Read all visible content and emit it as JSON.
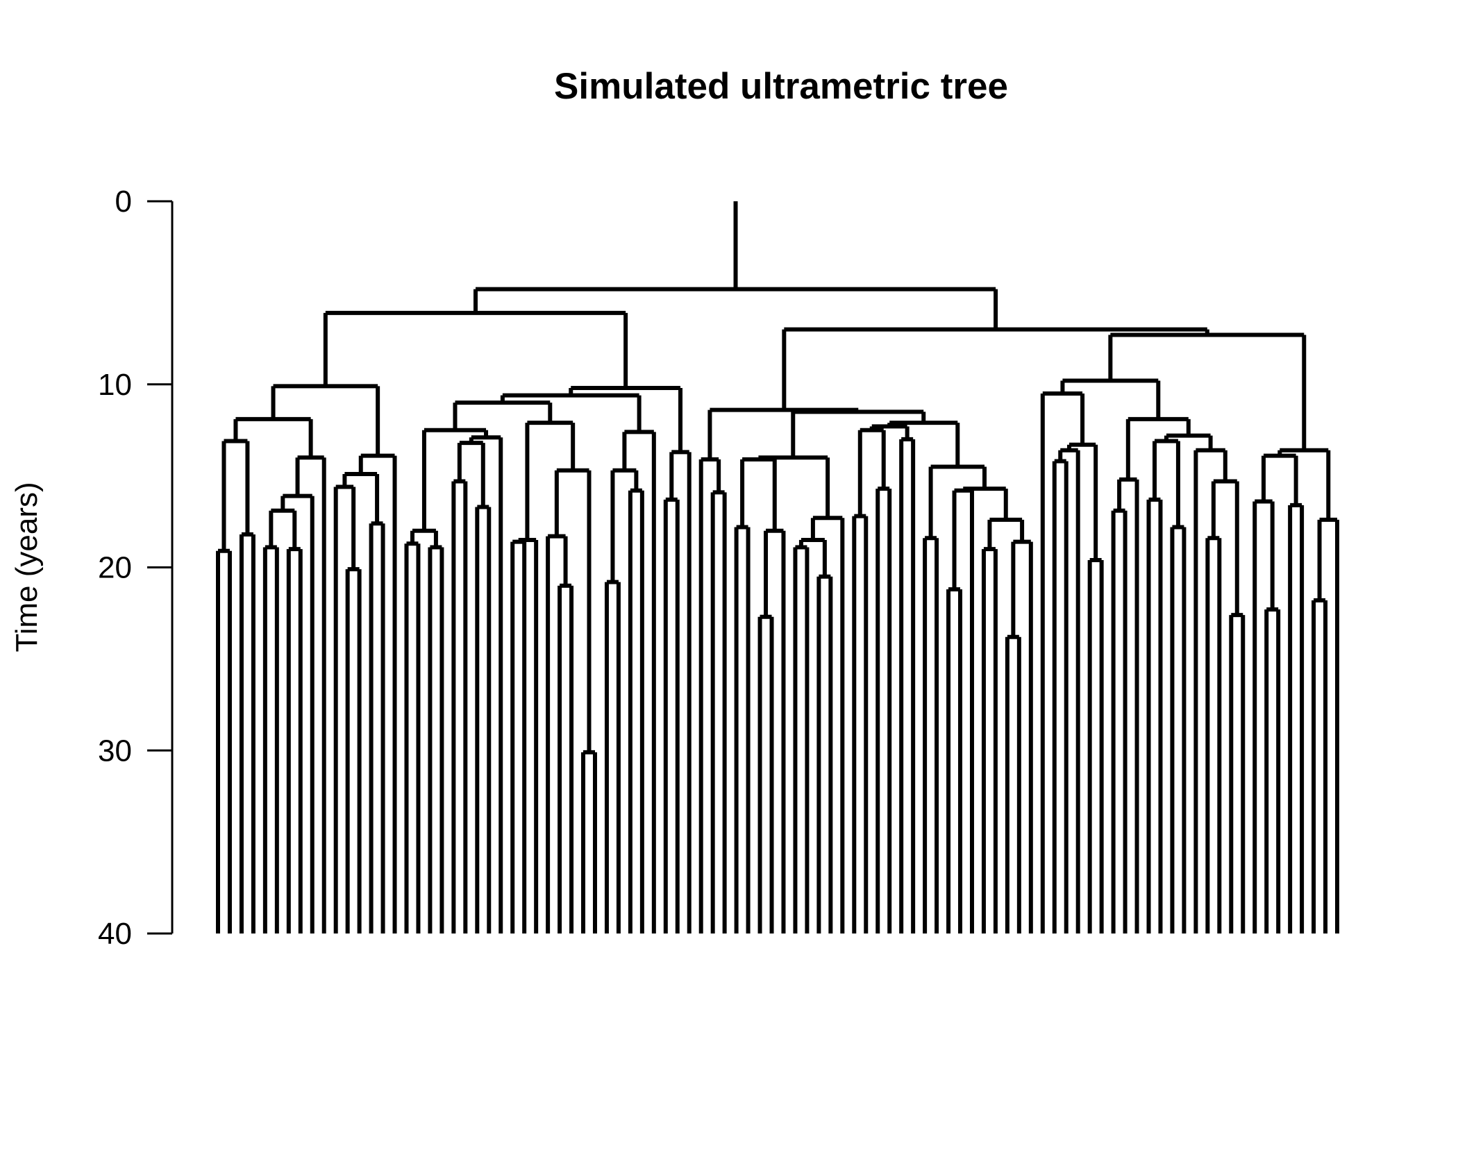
{
  "chart_data": {
    "type": "dendrogram",
    "title": "Simulated ultrametric tree",
    "ylabel": "Time (years)",
    "y_axis": {
      "ticks": [
        0,
        10,
        20,
        30,
        40
      ],
      "tick_labels": [
        "0",
        "10",
        "20",
        "30",
        "40"
      ],
      "ylim": [
        0,
        40
      ]
    },
    "tip_time": 40,
    "root_time": 0,
    "tree": [
      4.8,
      [
        6.1,
        [
          10.1,
          [
            11.9,
            [
              13.1,
              19.1,
              18.2
            ],
            [
              14.0,
              [
                16.1,
                [
                  16.9,
                  18.9,
                  19.0
                ],
                40
              ],
              40
            ]
          ],
          [
            13.9,
            [
              14.9,
              [
                15.6,
                40,
                20.1
              ],
              17.6
            ],
            40
          ]
        ],
        [
          10.2,
          [
            10.6,
            [
              11.0,
              [
                12.5,
                [
                  18.0,
                  18.7,
                  18.9
                ],
                [
                  12.9,
                  [
                    13.2,
                    15.3,
                    16.7
                  ],
                  40
                ]
              ],
              [
                12.1,
                [
                  18.5,
                  18.6,
                  40
                ],
                [
                  14.7,
                  [
                    18.3,
                    40,
                    21.0
                  ],
                  30.1
                ]
              ]
            ],
            [
              12.6,
              [
                14.7,
                20.8,
                15.8
              ],
              40
            ]
          ],
          [
            13.7,
            16.3,
            40
          ]
        ]
      ],
      [
        7.0,
        [
          11.4,
          [
            14.1,
            40,
            15.9
          ],
          [
            11.5,
            [
              14.0,
              [
                14.1,
                17.8,
                [
                  18.0,
                  22.7,
                  40
                ]
              ],
              [
                17.3,
                [
                  18.5,
                  18.9,
                  20.5
                ],
                40
              ]
            ],
            [
              12.1,
              [
                12.3,
                [
                  12.5,
                  17.2,
                  15.7
                ],
                13.0
              ],
              [
                14.5,
                18.4,
                [
                  15.7,
                  [
                    15.8,
                    21.2,
                    40
                  ],
                  [
                    17.4,
                    19.0,
                    [
                      18.6,
                      23.8,
                      40
                    ]
                  ]
                ]
              ]
            ]
          ]
        ],
        [
          7.3,
          [
            9.8,
            [
              10.5,
              40,
              [
                13.3,
                [
                  13.6,
                  14.2,
                  40
                ],
                19.6
              ]
            ],
            [
              11.9,
              [
                15.2,
                16.9,
                40
              ],
              [
                12.8,
                [
                  13.1,
                  16.3,
                  17.8
                ],
                [
                  13.6,
                  40,
                  [
                    15.3,
                    18.4,
                    22.6
                  ]
                ]
              ]
            ]
          ],
          [
            13.6,
            [
              13.9,
              [
                16.4,
                40,
                22.3
              ],
              16.6
            ],
            [
              17.4,
              21.8,
              40
            ]
          ]
        ]
      ]
    ]
  }
}
